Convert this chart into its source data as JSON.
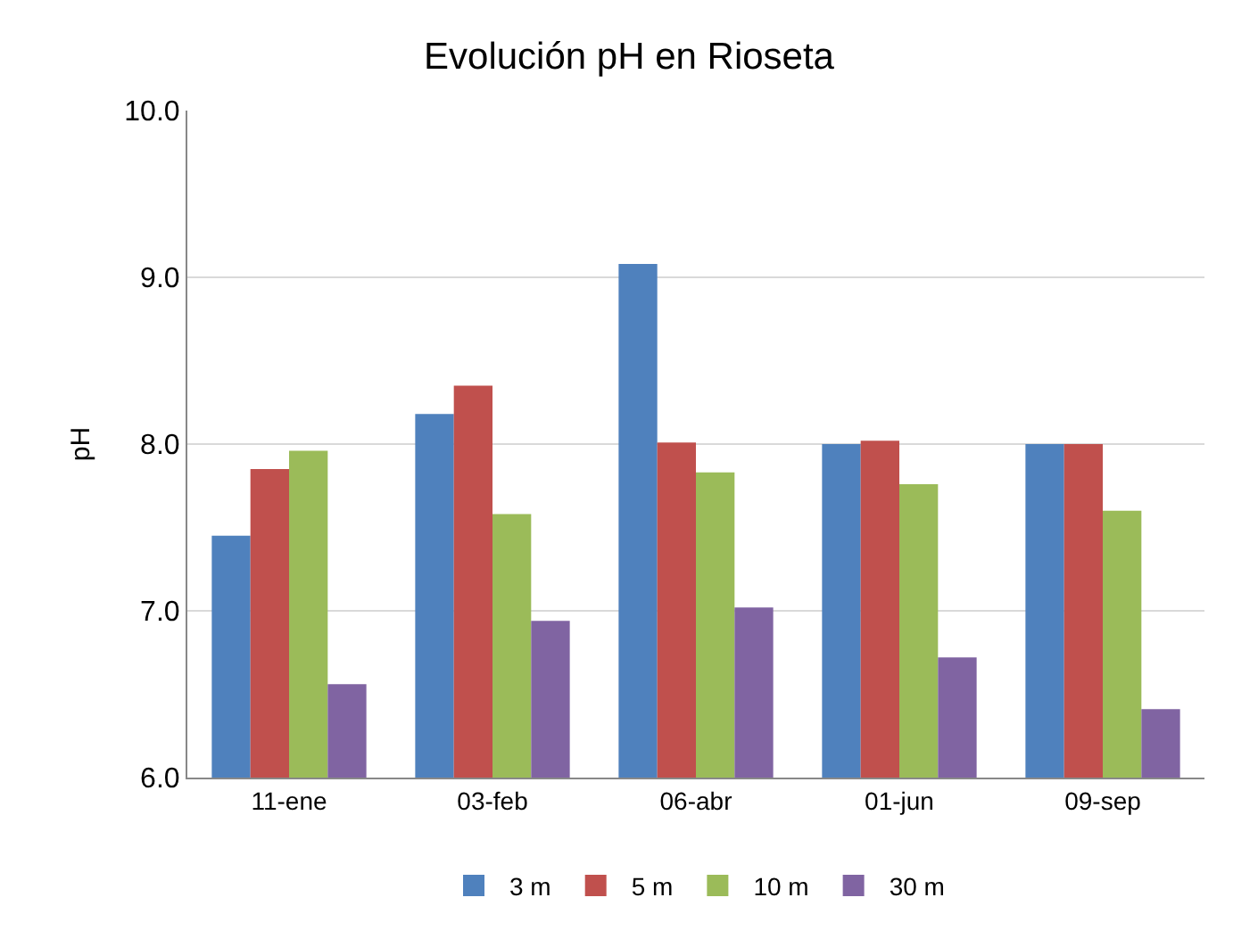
{
  "chart_data": {
    "type": "bar",
    "title": "Evolución pH en Rioseta",
    "ylabel": "pH",
    "categories": [
      "11-ene",
      "03-feb",
      "06-abr",
      "01-jun",
      "09-sep"
    ],
    "series": [
      {
        "name": "3 m",
        "color": "#4f81bd",
        "values": [
          7.45,
          8.18,
          9.08,
          8.0,
          8.0
        ]
      },
      {
        "name": "5 m",
        "color": "#c0504d",
        "values": [
          7.85,
          8.35,
          8.01,
          8.02,
          8.0
        ]
      },
      {
        "name": "10 m",
        "color": "#9bbb59",
        "values": [
          7.96,
          7.58,
          7.83,
          7.76,
          7.6
        ]
      },
      {
        "name": "30 m",
        "color": "#8064a2",
        "values": [
          6.56,
          6.94,
          7.02,
          6.72,
          6.41
        ]
      }
    ],
    "ylim": [
      6.0,
      10.0
    ],
    "yticks": [
      {
        "value": 6,
        "label": "6.0"
      },
      {
        "value": 7,
        "label": "7.0"
      },
      {
        "value": 8,
        "label": "8.0"
      },
      {
        "value": 9,
        "label": "9.0"
      },
      {
        "value": 10,
        "label": "10.0"
      }
    ],
    "grid": "y",
    "legend": "bottom"
  }
}
